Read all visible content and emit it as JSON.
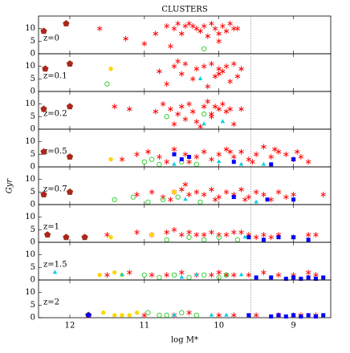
{
  "chart_data": {
    "type": "scatter",
    "title": "CLUSTERS",
    "xlabel": "log M*",
    "ylabel": "Gyr",
    "xlim": [
      12.42,
      8.5
    ],
    "ylim": [
      0,
      15
    ],
    "xticks": [
      12,
      11,
      10,
      9
    ],
    "yticks": [
      0,
      5,
      10
    ],
    "reference_x": 9.57,
    "panels": [
      {
        "label": "z=0",
        "series": [
          {
            "marker": "star",
            "color": "#ff0000",
            "x": [
              11.6,
              11.25,
              11.0,
              10.85,
              10.7,
              10.6,
              10.5,
              10.45,
              10.4,
              10.3,
              10.25,
              10.2,
              10.1,
              10.05,
              10.0,
              9.95,
              9.9,
              9.85,
              9.8,
              10.65,
              10.35,
              10.15,
              9.75,
              10.55,
              10.0
            ],
            "y": [
              10,
              6,
              4,
              8,
              11,
              10,
              8,
              11,
              12,
              10,
              9,
              11,
              12,
              10,
              8,
              11,
              9,
              12,
              10,
              3,
              11,
              7,
              10,
              12,
              5
            ]
          },
          {
            "marker": "pentagon",
            "color": "#b22222",
            "x": [
              12.35,
              12.05
            ],
            "y": [
              9,
              12
            ]
          },
          {
            "marker": "circle",
            "color": "#22cc22",
            "x": [
              10.2
            ],
            "y": [
              2
            ]
          }
        ]
      },
      {
        "label": "z=0.1",
        "series": [
          {
            "marker": "star",
            "color": "#ff0000",
            "x": [
              10.8,
              10.7,
              10.6,
              10.5,
              10.45,
              10.3,
              10.2,
              10.1,
              10.05,
              10.0,
              9.95,
              9.9,
              9.85,
              9.8,
              10.55,
              10.35,
              10.15,
              10.0,
              9.7,
              9.75
            ],
            "y": [
              8,
              3,
              10,
              7,
              11,
              9,
              10,
              11,
              6,
              9,
              8,
              10,
              4,
              11,
              12,
              5,
              2,
              7,
              9,
              6
            ]
          },
          {
            "marker": "pentagon",
            "color": "#b22222",
            "x": [
              12.33,
              12.0
            ],
            "y": [
              9,
              11
            ]
          },
          {
            "marker": "dot",
            "color": "#ffd700",
            "x": [
              11.45
            ],
            "y": [
              9
            ]
          },
          {
            "marker": "circle",
            "color": "#22cc22",
            "x": [
              11.5
            ],
            "y": [
              3
            ]
          },
          {
            "marker": "triangle",
            "color": "#00d0e0",
            "x": [
              10.25
            ],
            "y": [
              5
            ]
          }
        ]
      },
      {
        "label": "z=0.2",
        "series": [
          {
            "marker": "star",
            "color": "#ff0000",
            "x": [
              11.4,
              11.2,
              10.85,
              10.75,
              10.65,
              10.55,
              10.5,
              10.4,
              10.35,
              10.3,
              10.2,
              10.15,
              10.1,
              10.05,
              9.95,
              9.9,
              9.85,
              9.8,
              9.7,
              10.6,
              10.45,
              10.25,
              10.0,
              10.1
            ],
            "y": [
              9,
              8,
              7,
              10,
              8,
              6,
              9,
              10,
              7,
              3,
              9,
              11,
              5,
              9,
              10,
              7,
              8,
              2,
              8,
              2,
              4,
              1,
              8,
              6
            ]
          },
          {
            "marker": "pentagon",
            "color": "#b22222",
            "x": [
              12.35,
              12.0
            ],
            "y": [
              8,
              9
            ]
          },
          {
            "marker": "circle",
            "color": "#22cc22",
            "x": [
              10.7,
              10.2
            ],
            "y": [
              5,
              6
            ]
          },
          {
            "marker": "triangle",
            "color": "#00d0e0",
            "x": [
              10.2,
              9.95
            ],
            "y": [
              2,
              3
            ]
          }
        ]
      },
      {
        "label": "z=0.5",
        "series": [
          {
            "marker": "star",
            "color": "#ff0000",
            "x": [
              11.3,
              11.1,
              10.95,
              10.8,
              10.6,
              10.45,
              10.3,
              10.2,
              10.1,
              10.0,
              9.9,
              9.8,
              9.7,
              9.6,
              9.5,
              9.4,
              9.3,
              9.2,
              9.1,
              9.0,
              8.9,
              8.8,
              10.7,
              10.4,
              9.85,
              9.55,
              9.25,
              8.95
            ],
            "y": [
              3,
              5,
              6,
              4,
              7,
              5,
              4,
              6,
              3,
              5,
              7,
              4,
              6,
              3,
              5,
              8,
              4,
              6,
              5,
              3,
              4,
              2,
              2,
              2,
              6,
              2,
              7,
              6
            ]
          },
          {
            "marker": "pentagon",
            "color": "#b22222",
            "x": [
              12.35,
              12.0
            ],
            "y": [
              6,
              4
            ]
          },
          {
            "marker": "dot",
            "color": "#ffd700",
            "x": [
              11.45
            ],
            "y": [
              3
            ]
          },
          {
            "marker": "circle",
            "color": "#22cc22",
            "x": [
              11.0,
              10.9,
              10.8,
              10.5,
              10.3
            ],
            "y": [
              2,
              3,
              1,
              2,
              1
            ]
          },
          {
            "marker": "triangle",
            "color": "#00d0e0",
            "x": [
              10.6,
              10.0,
              9.7,
              9.4
            ],
            "y": [
              1,
              2,
              1,
              1
            ]
          },
          {
            "marker": "square",
            "color": "#0000ff",
            "x": [
              10.6,
              10.5,
              10.4,
              9.8,
              9.3,
              9.0
            ],
            "y": [
              5,
              3,
              4,
              2,
              1,
              3
            ]
          }
        ]
      },
      {
        "label": "z=0.7",
        "series": [
          {
            "marker": "star",
            "color": "#ff0000",
            "x": [
              11.1,
              10.9,
              10.75,
              10.6,
              10.5,
              10.4,
              10.3,
              10.2,
              10.1,
              10.0,
              9.9,
              9.8,
              9.7,
              9.6,
              9.5,
              9.4,
              9.3,
              9.2,
              9.1,
              9.0,
              8.6,
              10.65,
              10.45,
              10.05,
              9.65
            ],
            "y": [
              4,
              5,
              3,
              5,
              6,
              4,
              5,
              4,
              6,
              3,
              5,
              4,
              6,
              3,
              5,
              4,
              2,
              5,
              3,
              4,
              4,
              2,
              8,
              2,
              2
            ]
          },
          {
            "marker": "pentagon",
            "color": "#b22222",
            "x": [
              12.35,
              12.0
            ],
            "y": [
              4,
              5
            ]
          },
          {
            "marker": "dot",
            "color": "#ffd700",
            "x": [
              10.6
            ],
            "y": [
              5
            ]
          },
          {
            "marker": "circle",
            "color": "#22cc22",
            "x": [
              11.4,
              11.15,
              10.95,
              10.75,
              10.55,
              10.25
            ],
            "y": [
              2,
              3,
              1,
              2,
              3,
              1
            ]
          },
          {
            "marker": "triangle",
            "color": "#00d0e0",
            "x": [
              10.45,
              9.5
            ],
            "y": [
              2,
              1
            ]
          },
          {
            "marker": "square",
            "color": "#0000ff",
            "x": [
              9.8,
              9.35,
              9.0
            ],
            "y": [
              3,
              2,
              2
            ]
          }
        ]
      },
      {
        "label": "z=1",
        "series": [
          {
            "marker": "star",
            "color": "#ff0000",
            "x": [
              11.5,
              11.1,
              10.9,
              10.7,
              10.5,
              10.4,
              10.3,
              10.2,
              10.1,
              10.0,
              9.9,
              9.8,
              9.6,
              9.5,
              9.4,
              9.2,
              9.0,
              8.8,
              8.7,
              10.6,
              9.7,
              9.3
            ],
            "y": [
              3,
              4,
              3,
              4,
              3,
              4,
              3,
              3,
              4,
              3,
              3,
              4,
              3,
              2,
              3,
              3,
              2,
              3,
              3,
              5,
              4,
              2
            ]
          },
          {
            "marker": "pentagon",
            "color": "#b22222",
            "x": [
              12.3,
              12.05,
              11.8
            ],
            "y": [
              3,
              2,
              2
            ]
          },
          {
            "marker": "dot",
            "color": "#ffd700",
            "x": [
              11.45,
              10.9
            ],
            "y": [
              2,
              3
            ]
          },
          {
            "marker": "circle",
            "color": "#22cc22",
            "x": [
              10.7,
              10.4,
              10.2,
              10.0,
              9.75
            ],
            "y": [
              1,
              2,
              1,
              2,
              1
            ]
          },
          {
            "marker": "square",
            "color": "#0000ff",
            "x": [
              9.6,
              9.4,
              9.2,
              9.0,
              8.8
            ],
            "y": [
              2,
              1,
              2,
              2,
              1
            ]
          },
          {
            "marker": "triangle",
            "color": "#00d0e0",
            "x": [
              9.65
            ],
            "y": [
              2
            ]
          }
        ]
      },
      {
        "label": "z=1.5",
        "series": [
          {
            "marker": "star",
            "color": "#ff0000",
            "x": [
              11.5,
              11.2,
              10.9,
              10.7,
              10.5,
              10.3,
              10.1,
              10.0,
              9.9,
              9.8,
              9.6,
              9.4,
              9.2,
              9.0,
              8.8,
              8.7
            ],
            "y": [
              2,
              3,
              2,
              2,
              3,
              2,
              2,
              3,
              2,
              2,
              2,
              3,
              2,
              2,
              3,
              2
            ]
          },
          {
            "marker": "dot",
            "color": "#ffd700",
            "x": [
              11.6,
              11.4,
              11.3
            ],
            "y": [
              2,
              3,
              2
            ]
          },
          {
            "marker": "circle",
            "color": "#22cc22",
            "x": [
              11.0,
              10.8,
              10.6,
              10.4,
              10.2,
              10.0,
              9.9
            ],
            "y": [
              2,
              1,
              2,
              1,
              2,
              1,
              2
            ]
          },
          {
            "marker": "triangle",
            "color": "#00d0e0",
            "x": [
              12.2,
              11.3,
              10.5,
              10.3,
              9.7,
              9.5
            ],
            "y": [
              3,
              2,
              1,
              2,
              2,
              1
            ]
          },
          {
            "marker": "square",
            "color": "#0000ff",
            "x": [
              9.5,
              9.3,
              9.1,
              9.0,
              8.9,
              8.8,
              8.7,
              8.6
            ],
            "y": [
              1,
              1,
              0.5,
              1,
              0.5,
              1,
              0.5,
              1
            ]
          }
        ]
      },
      {
        "label": "z=2",
        "series": [
          {
            "marker": "star",
            "color": "#ff0000",
            "x": [
              11.0,
              10.6,
              10.4,
              10.0,
              9.8,
              9.5,
              9.2,
              9.0,
              8.9,
              8.7
            ],
            "y": [
              1,
              1,
              2,
              1,
              1,
              1,
              1,
              1,
              1,
              1
            ]
          },
          {
            "marker": "pentagon",
            "color": "#0000ff",
            "x": [
              11.75
            ],
            "y": [
              1
            ]
          },
          {
            "marker": "dot",
            "color": "#ffd700",
            "x": [
              11.55,
              11.4,
              11.3,
              11.2,
              11.1
            ],
            "y": [
              2,
              1,
              1,
              1,
              2
            ]
          },
          {
            "marker": "circle",
            "color": "#22cc22",
            "x": [
              10.95,
              10.8,
              10.7,
              10.5,
              10.3
            ],
            "y": [
              2,
              1,
              1,
              2,
              1
            ]
          },
          {
            "marker": "triangle",
            "color": "#00d0e0",
            "x": [
              10.6,
              10.1,
              9.9
            ],
            "y": [
              1,
              1,
              1
            ]
          },
          {
            "marker": "square",
            "color": "#0000ff",
            "x": [
              9.6,
              9.3,
              9.2,
              9.1,
              9.0,
              8.9,
              8.8,
              8.7,
              8.6
            ],
            "y": [
              1,
              0.5,
              1,
              0.5,
              1,
              0.5,
              1,
              0.5,
              1
            ]
          }
        ]
      }
    ]
  }
}
